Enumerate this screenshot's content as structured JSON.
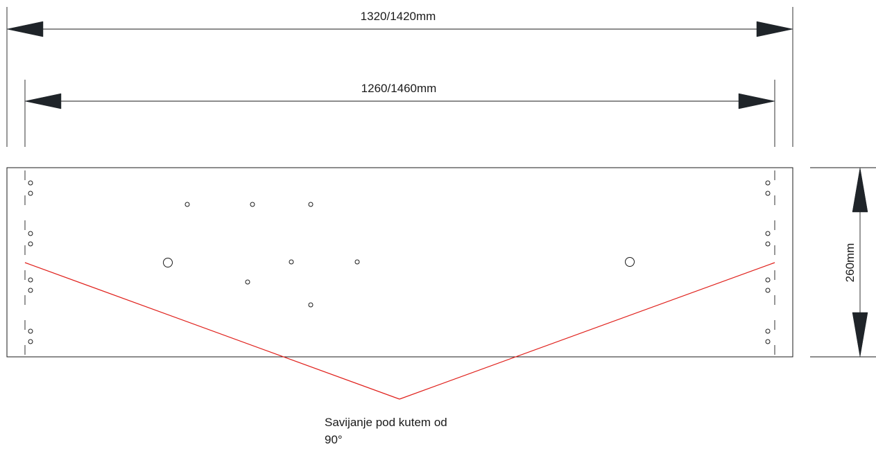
{
  "dimensions": {
    "overall_width_label": "1320/1420mm",
    "inner_width_label": "1260/1460mm",
    "height_label": "260mm"
  },
  "annotation": {
    "bend_note_line1": "Savijanje pod kutem od",
    "bend_note_line2": "90°"
  },
  "colors": {
    "line": "#1a1a1a",
    "arrow": "#1f2429",
    "bend_line": "#e0201b",
    "background": "#ffffff"
  }
}
